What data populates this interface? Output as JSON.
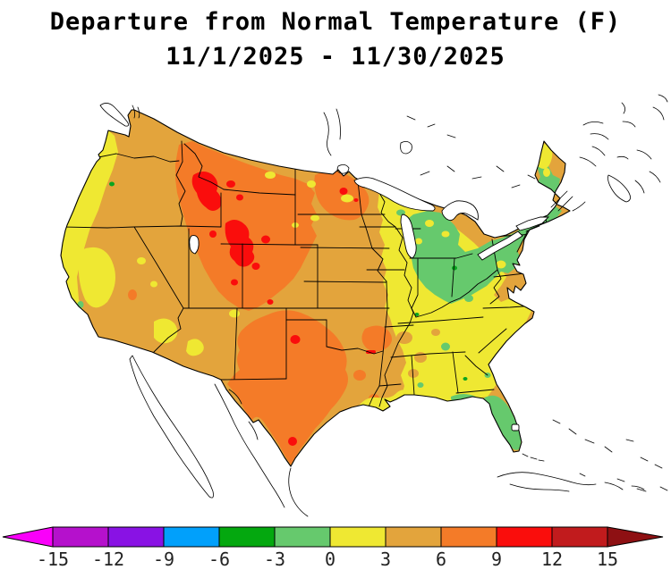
{
  "title": {
    "line1": "Departure from Normal Temperature (F)",
    "line2": "11/1/2025 - 11/30/2025"
  },
  "colorbar": {
    "tick_labels": [
      "-15",
      "-12",
      "-9",
      "-6",
      "-3",
      "0",
      "3",
      "6",
      "9",
      "12",
      "15"
    ],
    "left_arrow_color": "#FA00FA",
    "right_arrow_color": "#8E1013",
    "segment_colors": [
      "#B511CC",
      "#8912E4",
      "#01A0FB",
      "#04A80F",
      "#66C96D",
      "#EFE832",
      "#E3A43C",
      "#F47B28",
      "#FA0D0C",
      "#C11B1D"
    ],
    "segment_ranges": [
      "-15 to -12",
      "-12 to -9",
      "-9 to -6",
      "-6 to -3",
      "-3 to 0",
      "0 to 3",
      "3 to 6",
      "6 to 9",
      "9 to 12",
      "12 to 15"
    ]
  },
  "map": {
    "palette": {
      "tan": "#E3A43C",
      "yellow": "#EFE832",
      "orange": "#F47B28",
      "red": "#FA0D0C",
      "light_green": "#66C96D",
      "green": "#0AA51F",
      "water": "#FFFFFF",
      "outline": "#000000"
    },
    "region_values": [
      {
        "region": "Pacific Coast (WA/OR/CA coast)",
        "departure": "0 to 3"
      },
      {
        "region": "Interior West / Great Basin / Rockies",
        "departure": "6 to 9"
      },
      {
        "region": "Central Idaho, SW Montana, NE Utah, NW Colorado",
        "departure": "9 to 12"
      },
      {
        "region": "Northern Plains, Southwest, central US",
        "departure": "3 to 6"
      },
      {
        "region": "Texas and western Oklahoma",
        "departure": "6 to 9"
      },
      {
        "region": "Western Minnesota / eastern Dakotas",
        "departure": "6 to 9"
      },
      {
        "region": "Midwest and Southeast (WI/IL/KY/TN/AL/GA/Carolinas)",
        "departure": "0 to 3"
      },
      {
        "region": "Great Lakes east and Northeast (MI/OH/PA/NY/New England)",
        "departure": "-3 to 0"
      },
      {
        "region": "Florida peninsula",
        "departure": "-3 to 0"
      },
      {
        "region": "Northern Maine",
        "departure": "0 to 3"
      }
    ]
  }
}
